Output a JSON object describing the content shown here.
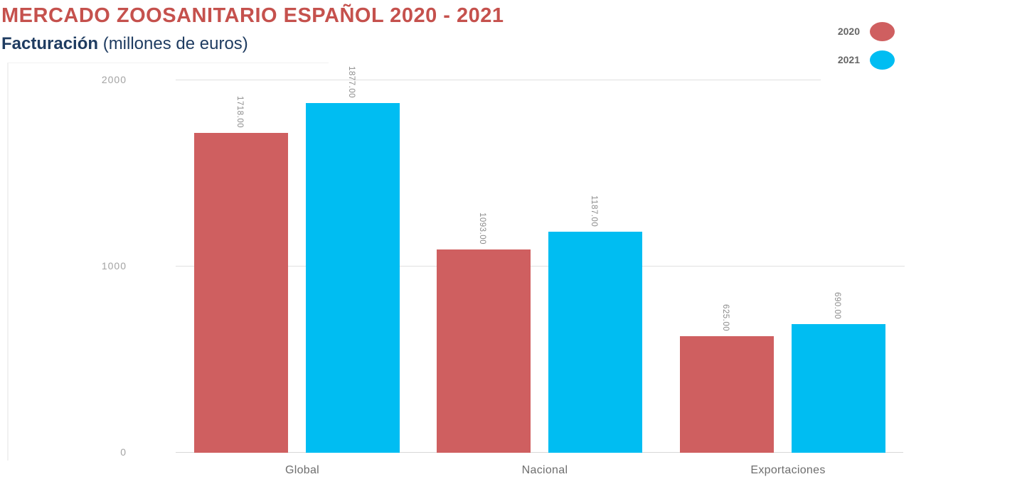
{
  "header": {
    "title": "MERCADO ZOOSANITARIO ESPAÑOL 2020 - 2021",
    "subtitle": "Facturación",
    "subtitle_units": " (millones de euros)"
  },
  "colors": {
    "title": "#c5514d",
    "subtitle": "#1f3c61",
    "series_2020": "#cf5f60",
    "series_2021": "#00bdf2",
    "grid": "#e0e0e0",
    "axis_line": "#d8d8d8",
    "tick_label": "#a3a3a3",
    "category_label": "#6e6e6e",
    "value_label": "#8c8c8c",
    "legend_label": "#666666"
  },
  "legend": [
    {
      "label": "2020",
      "color": "#cf5f60"
    },
    {
      "label": "2021",
      "color": "#00bdf2"
    }
  ],
  "chart_data": {
    "type": "bar",
    "title": "MERCADO ZOOSANITARIO ESPAÑOL 2020 - 2021",
    "subtitle": "Facturación (millones de euros)",
    "categories": [
      "Global",
      "Nacional",
      "Exportaciones"
    ],
    "series": [
      {
        "name": "2020",
        "color": "#cf5f60",
        "values": [
          1718,
          1093,
          625
        ],
        "data_labels": [
          "1718.00",
          "1093.00",
          "625.00"
        ]
      },
      {
        "name": "2021",
        "color": "#00bdf2",
        "values": [
          1877,
          1187,
          690
        ],
        "data_labels": [
          "1877.00",
          "1187.00",
          "690.00"
        ]
      }
    ],
    "xlabel": "",
    "ylabel": "",
    "ylim": [
      0,
      2000
    ],
    "yticks": [
      0,
      1000,
      2000
    ],
    "ytick_labels": [
      "0",
      "1000",
      "2000"
    ],
    "grid": true,
    "legend_position": "top-right",
    "bar_label_rotation": 90,
    "bar_label_format": "two-decimals"
  }
}
